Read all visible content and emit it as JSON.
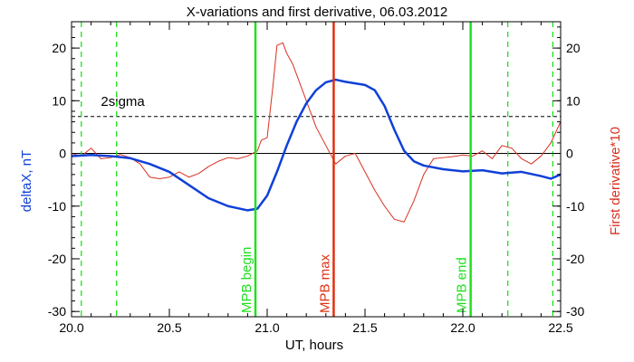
{
  "chart_data": {
    "type": "line",
    "title": "X-variations and first derivative, 06.03.2012",
    "xlabel": "UT, hours",
    "ylabel_left": "deltaX, nT",
    "ylabel_right": "First derivative*10",
    "xlim": [
      20.0,
      22.5
    ],
    "ylim": [
      -31,
      25
    ],
    "x_ticks": [
      20.0,
      20.5,
      21.0,
      21.5,
      22.0,
      22.5
    ],
    "x_tick_labels": [
      "20.0",
      "20.5",
      "21.0",
      "21.5",
      "22.0",
      "22.5"
    ],
    "y_ticks": [
      20,
      10,
      0,
      -10,
      -20,
      -30
    ],
    "y_tick_labels": [
      "20",
      "10",
      "0",
      "-10",
      "-20",
      "-30"
    ],
    "colors": {
      "deltax": "#1040d8",
      "derivative": "#d83020",
      "markers": "#20e020",
      "max_marker": "#e03010",
      "sigma": "#000000"
    },
    "series": [
      {
        "key": "deltax",
        "x": [
          20.0,
          20.1,
          20.2,
          20.3,
          20.4,
          20.5,
          20.6,
          20.7,
          20.8,
          20.9,
          20.95,
          21.0,
          21.05,
          21.1,
          21.15,
          21.2,
          21.25,
          21.3,
          21.35,
          21.4,
          21.5,
          21.55,
          21.6,
          21.65,
          21.7,
          21.75,
          21.8,
          21.9,
          22.0,
          22.1,
          22.2,
          22.3,
          22.4,
          22.45,
          22.5
        ],
        "values": [
          -0.5,
          -0.3,
          -0.5,
          -0.9,
          -2.0,
          -3.5,
          -6.0,
          -8.5,
          -10.0,
          -10.8,
          -10.5,
          -8.0,
          -3.5,
          1.5,
          6.0,
          9.5,
          12.0,
          13.5,
          14.0,
          13.6,
          13.0,
          12.0,
          9.0,
          4.5,
          0.5,
          -1.5,
          -2.3,
          -3.0,
          -3.4,
          -3.2,
          -3.8,
          -3.5,
          -4.3,
          -4.8,
          -4.0
        ]
      },
      {
        "key": "derivative",
        "x": [
          20.0,
          20.05,
          20.1,
          20.15,
          20.2,
          20.25,
          20.3,
          20.35,
          20.4,
          20.45,
          20.5,
          20.55,
          20.6,
          20.65,
          20.7,
          20.75,
          20.8,
          20.85,
          20.9,
          20.95,
          20.97,
          21.0,
          21.03,
          21.05,
          21.08,
          21.1,
          21.13,
          21.15,
          21.2,
          21.25,
          21.3,
          21.35,
          21.4,
          21.45,
          21.5,
          21.55,
          21.6,
          21.65,
          21.7,
          21.75,
          21.8,
          21.85,
          21.9,
          21.95,
          22.0,
          22.05,
          22.1,
          22.15,
          22.2,
          22.25,
          22.3,
          22.35,
          22.4,
          22.45,
          22.5
        ],
        "values": [
          0,
          -0.5,
          1.0,
          -1.0,
          -0.8,
          -0.2,
          -0.8,
          -2.0,
          -4.5,
          -4.8,
          -4.5,
          -3.5,
          -4.5,
          -3.8,
          -2.5,
          -1.5,
          -0.8,
          -1.0,
          -0.5,
          0.5,
          2.5,
          3.0,
          13.0,
          20.5,
          21.0,
          19.0,
          17.0,
          15.0,
          10.0,
          5.0,
          1.5,
          -2.0,
          -0.5,
          0.0,
          -3.5,
          -7.0,
          -10.0,
          -12.5,
          -13.0,
          -9.0,
          -4.0,
          -1.0,
          -0.8,
          -0.6,
          -0.3,
          -0.5,
          0.5,
          -1.0,
          1.5,
          1.0,
          -1.0,
          -2.0,
          -0.5,
          2.0,
          6.0
        ]
      }
    ],
    "sigma_level": 7,
    "sigma_label": "2sigma",
    "zero_line": 0,
    "dashed_markers_x": [
      20.05,
      20.23,
      22.23,
      22.46
    ],
    "solid_markers": [
      {
        "key": "begin",
        "x": 20.94,
        "label": "MPB begin"
      },
      {
        "key": "max",
        "x": 21.34,
        "label": "MPB max"
      },
      {
        "key": "end",
        "x": 22.04,
        "label": "MPB end"
      }
    ]
  }
}
